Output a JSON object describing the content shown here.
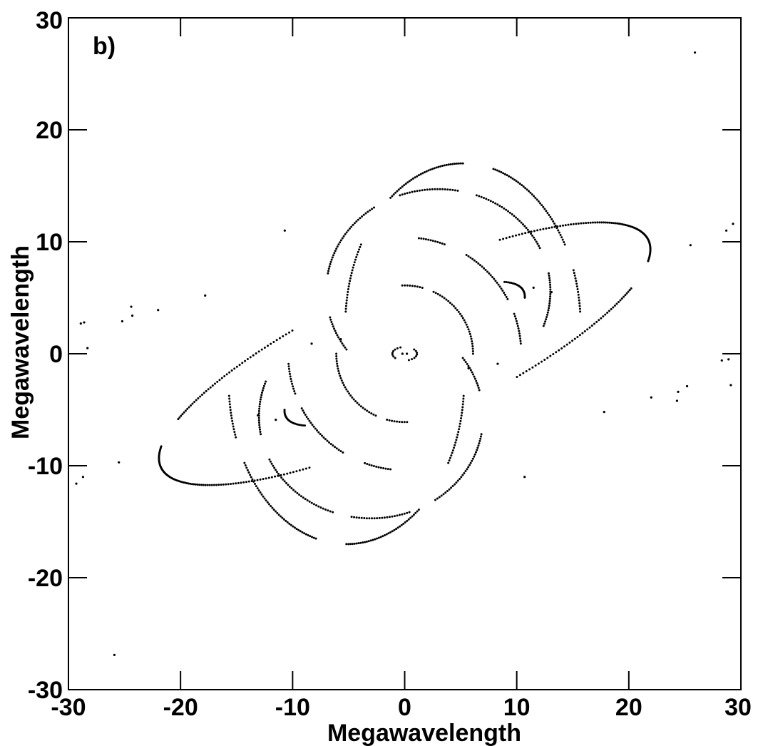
{
  "chart_data": {
    "type": "scatter",
    "panel_label": "b)",
    "title": "",
    "xlabel": "Megawavelength",
    "ylabel": "Megawavelength",
    "xlim": [
      -30,
      30
    ],
    "ylim": [
      -30,
      30
    ],
    "xticks": [
      -30,
      -20,
      -10,
      0,
      10,
      20,
      30
    ],
    "yticks": [
      -30,
      -20,
      -10,
      0,
      10,
      20,
      30
    ],
    "xtick_labels": [
      "-30",
      "-20",
      "-10",
      "0",
      "10",
      "20",
      "30"
    ],
    "ytick_labels": [
      "-30",
      "-20",
      "-10",
      "0",
      "10",
      "20",
      "30"
    ],
    "grid": false,
    "marker_color": "#000000",
    "tracks": [
      {
        "cx": 0,
        "cy": 0,
        "rx": 6.1,
        "ry": 6.1,
        "rot": 0,
        "segments": [
          [
            0,
            65
          ],
          [
            75,
            92
          ],
          [
            180,
            245
          ],
          [
            255,
            272
          ]
        ]
      },
      {
        "cx": 0,
        "cy": 0,
        "rx": 10.4,
        "ry": 10.4,
        "rot": 0,
        "segments": [
          [
            5,
            20
          ],
          [
            28,
            58
          ],
          [
            70,
            83
          ],
          [
            185,
            200
          ],
          [
            208,
            238
          ],
          [
            250,
            263
          ]
        ]
      },
      {
        "cx": 0,
        "cy": 0,
        "rx": 1.1,
        "ry": 0.6,
        "rot": 0,
        "segments": [
          [
            110,
            220
          ],
          [
            290,
            40
          ]
        ]
      },
      {
        "cx": 5.2,
        "cy": 2.5,
        "rx": 10.5,
        "ry": 14.5,
        "rot": 0,
        "segments": [
          [
            5,
            20
          ],
          [
            30,
            75
          ],
          [
            90,
            128
          ],
          [
            150,
            175
          ]
        ]
      },
      {
        "cx": -5.2,
        "cy": -2.5,
        "rx": 10.5,
        "ry": 14.5,
        "rot": 0,
        "segments": [
          [
            185,
            200
          ],
          [
            210,
            255
          ],
          [
            270,
            308
          ],
          [
            330,
            355
          ]
        ]
      },
      {
        "cx": 3.0,
        "cy": 5.6,
        "rx": 10.0,
        "ry": 9.1,
        "rot": 0,
        "segments": [
          [
            -20,
            10
          ],
          [
            25,
            70
          ],
          [
            80,
            110
          ],
          [
            125,
            170
          ],
          [
            195,
            215
          ]
        ]
      },
      {
        "cx": -3.0,
        "cy": -5.6,
        "rx": 10.0,
        "ry": 9.1,
        "rot": 0,
        "segments": [
          [
            160,
            190
          ],
          [
            205,
            250
          ],
          [
            260,
            290
          ],
          [
            305,
            350
          ],
          [
            15,
            35
          ]
        ]
      },
      {
        "cx": 0,
        "cy": 0,
        "rx": 24.0,
        "ry": 6.5,
        "rot": 25,
        "segments": [
          [
            -15,
            60
          ],
          [
            110,
            150
          ],
          [
            165,
            240
          ],
          [
            290,
            330
          ]
        ]
      },
      {
        "cx": 0,
        "cy": 0,
        "rx": 12.0,
        "ry": 3.5,
        "rot": 28,
        "segments": [
          [
            -10,
            25
          ],
          [
            170,
            205
          ]
        ]
      }
    ],
    "scatter_points": [
      [
        25.9,
        26.9
      ],
      [
        -25.9,
        -26.9
      ],
      [
        28.7,
        11.0
      ],
      [
        29.3,
        11.6
      ],
      [
        -28.7,
        -11.0
      ],
      [
        -29.3,
        -11.6
      ],
      [
        -28.9,
        2.7
      ],
      [
        -28.6,
        2.8
      ],
      [
        -28.3,
        0.5
      ],
      [
        28.9,
        -0.5
      ],
      [
        28.3,
        -0.6
      ],
      [
        29.1,
        -2.8
      ],
      [
        -25.5,
        -9.7
      ],
      [
        25.5,
        9.7
      ],
      [
        -25.2,
        2.9
      ],
      [
        -24.4,
        4.2
      ],
      [
        -24.3,
        3.4
      ],
      [
        24.3,
        -4.2
      ],
      [
        24.4,
        -3.4
      ],
      [
        25.2,
        -2.9
      ],
      [
        -22.0,
        3.9
      ],
      [
        22.0,
        -3.9
      ],
      [
        -17.8,
        5.2
      ],
      [
        17.8,
        -5.2
      ],
      [
        -8.3,
        0.9
      ],
      [
        -5.7,
        1.3
      ],
      [
        5.7,
        -1.3
      ],
      [
        8.3,
        -0.9
      ],
      [
        -10.7,
        11.0
      ],
      [
        10.7,
        -11.0
      ],
      [
        -13.1,
        -5.5
      ],
      [
        13.1,
        5.5
      ],
      [
        11.5,
        5.9
      ],
      [
        -11.5,
        -5.9
      ],
      [
        -0.2,
        0.0
      ],
      [
        0.2,
        0.0
      ]
    ]
  }
}
